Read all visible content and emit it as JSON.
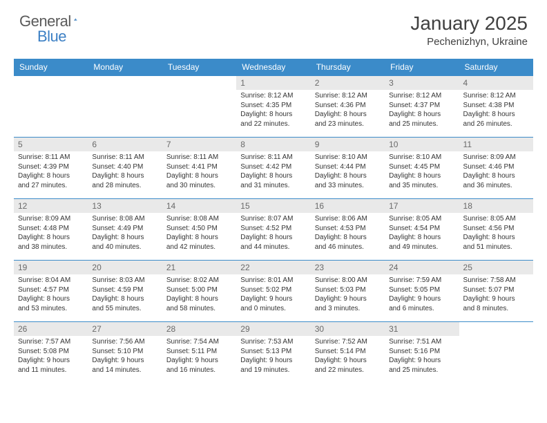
{
  "logo": {
    "text1": "General",
    "text2": "Blue"
  },
  "title": "January 2025",
  "location": "Pechenizhyn, Ukraine",
  "colors": {
    "header_bg": "#3b8bc9",
    "header_text": "#ffffff",
    "row_border": "#3b8bc9",
    "daynum_bg": "#e9e9e9",
    "daynum_text": "#696969",
    "body_text": "#333333",
    "logo_gray": "#5a5a5a",
    "logo_blue": "#3b7fc4",
    "page_bg": "#ffffff"
  },
  "fonts": {
    "title_size": 28,
    "location_size": 15,
    "header_size": 12,
    "daynum_size": 12,
    "cell_size": 10
  },
  "weekdays": [
    "Sunday",
    "Monday",
    "Tuesday",
    "Wednesday",
    "Thursday",
    "Friday",
    "Saturday"
  ],
  "weeks": [
    [
      null,
      null,
      null,
      {
        "day": "1",
        "sunrise": "8:12 AM",
        "sunset": "4:35 PM",
        "daylight_h": "8",
        "daylight_m": "22"
      },
      {
        "day": "2",
        "sunrise": "8:12 AM",
        "sunset": "4:36 PM",
        "daylight_h": "8",
        "daylight_m": "23"
      },
      {
        "day": "3",
        "sunrise": "8:12 AM",
        "sunset": "4:37 PM",
        "daylight_h": "8",
        "daylight_m": "25"
      },
      {
        "day": "4",
        "sunrise": "8:12 AM",
        "sunset": "4:38 PM",
        "daylight_h": "8",
        "daylight_m": "26"
      }
    ],
    [
      {
        "day": "5",
        "sunrise": "8:11 AM",
        "sunset": "4:39 PM",
        "daylight_h": "8",
        "daylight_m": "27"
      },
      {
        "day": "6",
        "sunrise": "8:11 AM",
        "sunset": "4:40 PM",
        "daylight_h": "8",
        "daylight_m": "28"
      },
      {
        "day": "7",
        "sunrise": "8:11 AM",
        "sunset": "4:41 PM",
        "daylight_h": "8",
        "daylight_m": "30"
      },
      {
        "day": "8",
        "sunrise": "8:11 AM",
        "sunset": "4:42 PM",
        "daylight_h": "8",
        "daylight_m": "31"
      },
      {
        "day": "9",
        "sunrise": "8:10 AM",
        "sunset": "4:44 PM",
        "daylight_h": "8",
        "daylight_m": "33"
      },
      {
        "day": "10",
        "sunrise": "8:10 AM",
        "sunset": "4:45 PM",
        "daylight_h": "8",
        "daylight_m": "35"
      },
      {
        "day": "11",
        "sunrise": "8:09 AM",
        "sunset": "4:46 PM",
        "daylight_h": "8",
        "daylight_m": "36"
      }
    ],
    [
      {
        "day": "12",
        "sunrise": "8:09 AM",
        "sunset": "4:48 PM",
        "daylight_h": "8",
        "daylight_m": "38"
      },
      {
        "day": "13",
        "sunrise": "8:08 AM",
        "sunset": "4:49 PM",
        "daylight_h": "8",
        "daylight_m": "40"
      },
      {
        "day": "14",
        "sunrise": "8:08 AM",
        "sunset": "4:50 PM",
        "daylight_h": "8",
        "daylight_m": "42"
      },
      {
        "day": "15",
        "sunrise": "8:07 AM",
        "sunset": "4:52 PM",
        "daylight_h": "8",
        "daylight_m": "44"
      },
      {
        "day": "16",
        "sunrise": "8:06 AM",
        "sunset": "4:53 PM",
        "daylight_h": "8",
        "daylight_m": "46"
      },
      {
        "day": "17",
        "sunrise": "8:05 AM",
        "sunset": "4:54 PM",
        "daylight_h": "8",
        "daylight_m": "49"
      },
      {
        "day": "18",
        "sunrise": "8:05 AM",
        "sunset": "4:56 PM",
        "daylight_h": "8",
        "daylight_m": "51"
      }
    ],
    [
      {
        "day": "19",
        "sunrise": "8:04 AM",
        "sunset": "4:57 PM",
        "daylight_h": "8",
        "daylight_m": "53"
      },
      {
        "day": "20",
        "sunrise": "8:03 AM",
        "sunset": "4:59 PM",
        "daylight_h": "8",
        "daylight_m": "55"
      },
      {
        "day": "21",
        "sunrise": "8:02 AM",
        "sunset": "5:00 PM",
        "daylight_h": "8",
        "daylight_m": "58"
      },
      {
        "day": "22",
        "sunrise": "8:01 AM",
        "sunset": "5:02 PM",
        "daylight_h": "9",
        "daylight_m": "0"
      },
      {
        "day": "23",
        "sunrise": "8:00 AM",
        "sunset": "5:03 PM",
        "daylight_h": "9",
        "daylight_m": "3"
      },
      {
        "day": "24",
        "sunrise": "7:59 AM",
        "sunset": "5:05 PM",
        "daylight_h": "9",
        "daylight_m": "6"
      },
      {
        "day": "25",
        "sunrise": "7:58 AM",
        "sunset": "5:07 PM",
        "daylight_h": "9",
        "daylight_m": "8"
      }
    ],
    [
      {
        "day": "26",
        "sunrise": "7:57 AM",
        "sunset": "5:08 PM",
        "daylight_h": "9",
        "daylight_m": "11"
      },
      {
        "day": "27",
        "sunrise": "7:56 AM",
        "sunset": "5:10 PM",
        "daylight_h": "9",
        "daylight_m": "14"
      },
      {
        "day": "28",
        "sunrise": "7:54 AM",
        "sunset": "5:11 PM",
        "daylight_h": "9",
        "daylight_m": "16"
      },
      {
        "day": "29",
        "sunrise": "7:53 AM",
        "sunset": "5:13 PM",
        "daylight_h": "9",
        "daylight_m": "19"
      },
      {
        "day": "30",
        "sunrise": "7:52 AM",
        "sunset": "5:14 PM",
        "daylight_h": "9",
        "daylight_m": "22"
      },
      {
        "day": "31",
        "sunrise": "7:51 AM",
        "sunset": "5:16 PM",
        "daylight_h": "9",
        "daylight_m": "25"
      },
      null
    ]
  ],
  "labels": {
    "sunrise": "Sunrise:",
    "sunset": "Sunset:",
    "daylight": "Daylight:",
    "hours": "hours",
    "and": "and",
    "minutes": "minutes."
  }
}
